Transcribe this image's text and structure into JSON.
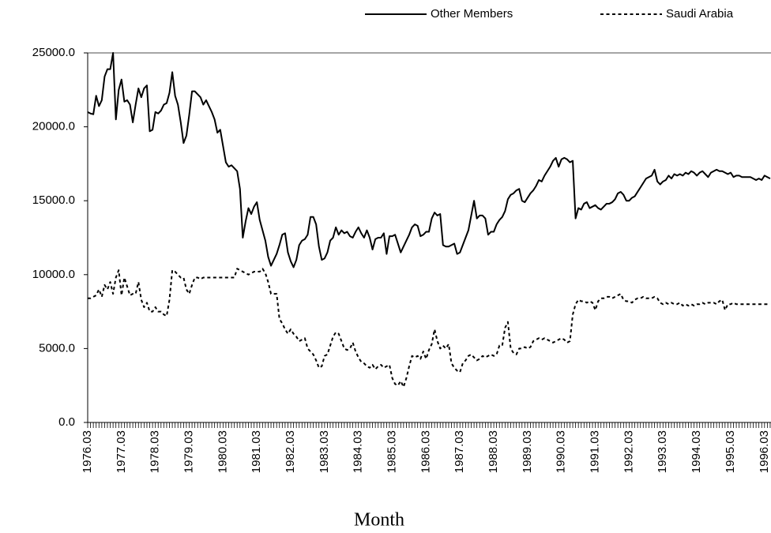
{
  "chart_data": {
    "type": "line",
    "x_label": "Month",
    "categories": [
      "1976.03",
      null,
      null,
      null,
      null,
      null,
      null,
      null,
      null,
      null,
      null,
      null,
      "1977.03",
      null,
      null,
      null,
      null,
      null,
      null,
      null,
      null,
      null,
      null,
      null,
      "1978.03",
      null,
      null,
      null,
      null,
      null,
      null,
      null,
      null,
      null,
      null,
      null,
      "1979.03",
      null,
      null,
      null,
      null,
      null,
      null,
      null,
      null,
      null,
      null,
      null,
      "1980.03",
      null,
      null,
      null,
      null,
      null,
      null,
      null,
      null,
      null,
      null,
      null,
      "1981.03",
      null,
      null,
      null,
      null,
      null,
      null,
      null,
      null,
      null,
      null,
      null,
      "1982.03",
      null,
      null,
      null,
      null,
      null,
      null,
      null,
      null,
      null,
      null,
      null,
      "1983.03",
      null,
      null,
      null,
      null,
      null,
      null,
      null,
      null,
      null,
      null,
      null,
      "1984.03",
      null,
      null,
      null,
      null,
      null,
      null,
      null,
      null,
      null,
      null,
      null,
      "1985.03",
      null,
      null,
      null,
      null,
      null,
      null,
      null,
      null,
      null,
      null,
      null,
      "1986.03",
      null,
      null,
      null,
      null,
      null,
      null,
      null,
      null,
      null,
      null,
      null,
      "1987.03",
      null,
      null,
      null,
      null,
      null,
      null,
      null,
      null,
      null,
      null,
      null,
      "1988.03",
      null,
      null,
      null,
      null,
      null,
      null,
      null,
      null,
      null,
      null,
      null,
      "1989.03",
      null,
      null,
      null,
      null,
      null,
      null,
      null,
      null,
      null,
      null,
      null,
      "1990.03",
      null,
      null,
      null,
      null,
      null,
      null,
      null,
      null,
      null,
      null,
      null,
      "1991.03",
      null,
      null,
      null,
      null,
      null,
      null,
      null,
      null,
      null,
      null,
      null,
      "1992.03",
      null,
      null,
      null,
      null,
      null,
      null,
      null,
      null,
      null,
      null,
      null,
      "1993.03",
      null,
      null,
      null,
      null,
      null,
      null,
      null,
      null,
      null,
      null,
      null,
      "1994.03",
      null,
      null,
      null,
      null,
      null,
      null,
      null,
      null,
      null,
      null,
      null,
      "1995.03",
      null,
      null,
      null,
      null,
      null,
      null,
      null,
      null,
      null,
      null,
      null,
      "1996.03",
      null,
      null
    ],
    "series": [
      {
        "name": "Other Members",
        "color": "#000000",
        "line_style": "solid",
        "values": [
          21000,
          20900,
          20850,
          22100,
          21400,
          21800,
          23400,
          23900,
          23900,
          25000,
          20500,
          22500,
          23200,
          21700,
          21800,
          21500,
          20300,
          21500,
          22600,
          22000,
          22600,
          22800,
          19700,
          19800,
          21000,
          20900,
          21100,
          21500,
          21600,
          22300,
          23700,
          22100,
          21500,
          20300,
          18900,
          19400,
          20800,
          22400,
          22400,
          22200,
          22000,
          21500,
          21800,
          21400,
          21000,
          20500,
          19600,
          19800,
          18700,
          17600,
          17300,
          17400,
          17200,
          17000,
          15800,
          12500,
          13600,
          14500,
          14100,
          14600,
          14900,
          13700,
          13000,
          12300,
          11200,
          10600,
          11000,
          11400,
          12000,
          12700,
          12800,
          11500,
          10900,
          10500,
          11000,
          12000,
          12300,
          12400,
          12700,
          13900,
          13900,
          13400,
          11900,
          11000,
          11100,
          11500,
          12300,
          12500,
          13200,
          12700,
          13000,
          12800,
          12900,
          12600,
          12500,
          12900,
          13200,
          12800,
          12500,
          13000,
          12500,
          11700,
          12400,
          12500,
          12500,
          12800,
          11400,
          12600,
          12600,
          12700,
          12100,
          11500,
          11900,
          12300,
          12700,
          13200,
          13400,
          13300,
          12600,
          12700,
          12900,
          12900,
          13800,
          14200,
          14000,
          14100,
          12000,
          11900,
          11900,
          12000,
          12100,
          11400,
          11500,
          12000,
          12500,
          13000,
          14000,
          15000,
          13800,
          14000,
          14000,
          13800,
          12700,
          12900,
          12900,
          13400,
          13700,
          13900,
          14300,
          15100,
          15400,
          15500,
          15700,
          15800,
          15000,
          14900,
          15200,
          15500,
          15700,
          16000,
          16400,
          16300,
          16700,
          17000,
          17300,
          17700,
          17900,
          17300,
          17800,
          17900,
          17800,
          17600,
          17700,
          13800,
          14500,
          14400,
          14800,
          14900,
          14500,
          14600,
          14700,
          14500,
          14400,
          14600,
          14800,
          14800,
          14900,
          15100,
          15500,
          15600,
          15400,
          15000,
          15000,
          15200,
          15300,
          15600,
          15900,
          16200,
          16500,
          16600,
          16700,
          17100,
          16300,
          16100,
          16300,
          16400,
          16700,
          16500,
          16800,
          16700,
          16800,
          16700,
          16900,
          16800,
          17000,
          16900,
          16700,
          16900,
          17000,
          16800,
          16600,
          16900,
          17000,
          17100,
          17000,
          17000,
          16900,
          16800,
          16900,
          16600,
          16700,
          16700,
          16600,
          16600,
          16600,
          16600,
          16500,
          16400,
          16500,
          16400,
          16700,
          16600,
          16500
        ]
      },
      {
        "name": "Saudi Arabia",
        "color": "#000000",
        "line_style": "dashed",
        "values": [
          8400,
          8400,
          8500,
          8600,
          9000,
          8500,
          9300,
          9000,
          9500,
          8700,
          9800,
          10300,
          8600,
          9800,
          9200,
          8600,
          8700,
          8700,
          9500,
          8300,
          7800,
          8100,
          7500,
          7500,
          7800,
          7500,
          7500,
          7300,
          7200,
          8300,
          10300,
          10200,
          10000,
          9800,
          9800,
          9000,
          8700,
          9300,
          9800,
          9800,
          9700,
          9800,
          9800,
          9800,
          9800,
          9800,
          9800,
          9800,
          9800,
          9800,
          9800,
          9800,
          9800,
          10400,
          10300,
          10200,
          10100,
          10000,
          10100,
          10200,
          10200,
          10200,
          10400,
          10100,
          9500,
          8700,
          8700,
          8700,
          7000,
          6700,
          6300,
          6000,
          6300,
          6000,
          5800,
          5500,
          5600,
          5700,
          5000,
          4800,
          4600,
          4200,
          3700,
          3800,
          4500,
          4600,
          5200,
          5800,
          6100,
          6000,
          5500,
          5000,
          4900,
          5000,
          5400,
          4800,
          4400,
          4100,
          4000,
          3800,
          3700,
          3900,
          3600,
          3800,
          3900,
          3700,
          3800,
          3900,
          3000,
          2600,
          2500,
          2800,
          2400,
          3000,
          3800,
          4500,
          4400,
          4500,
          4300,
          4800,
          4300,
          4900,
          5300,
          6300,
          5500,
          5000,
          5200,
          5000,
          5300,
          4000,
          3700,
          3500,
          3400,
          4000,
          4200,
          4500,
          4600,
          4400,
          4200,
          4300,
          4500,
          4400,
          4500,
          4600,
          4500,
          4600,
          5200,
          5200,
          6400,
          6800,
          5000,
          4700,
          4600,
          5000,
          5000,
          5100,
          5000,
          5100,
          5500,
          5600,
          5700,
          5600,
          5700,
          5600,
          5500,
          5400,
          5500,
          5600,
          5700,
          5600,
          5400,
          5500,
          7300,
          8000,
          8300,
          8200,
          8200,
          8100,
          8200,
          8100,
          7600,
          8200,
          8400,
          8400,
          8500,
          8500,
          8400,
          8500,
          8600,
          8700,
          8300,
          8200,
          8200,
          8100,
          8300,
          8400,
          8400,
          8500,
          8400,
          8400,
          8400,
          8500,
          8400,
          8100,
          8000,
          8100,
          8000,
          8100,
          8000,
          8000,
          8100,
          7900,
          8000,
          7900,
          8000,
          7900,
          8000,
          8000,
          8100,
          8000,
          8100,
          8100,
          8100,
          8000,
          8200,
          8300,
          7600,
          8000,
          8000,
          8100,
          8000,
          8000,
          8000,
          8000,
          8000,
          8000,
          8000,
          8000,
          8000,
          8000,
          8000,
          8000,
          8000
        ]
      }
    ],
    "ylim": [
      0,
      25000
    ],
    "yticks": [
      {
        "value": 0,
        "label": "0.0"
      },
      {
        "value": 5000,
        "label": "5000.0"
      },
      {
        "value": 10000,
        "label": "10000.0"
      },
      {
        "value": 15000,
        "label": "15000.0"
      },
      {
        "value": 20000,
        "label": "20000.0"
      },
      {
        "value": 25000,
        "label": "25000.0"
      }
    ],
    "grid": false,
    "legend": "top-right"
  }
}
